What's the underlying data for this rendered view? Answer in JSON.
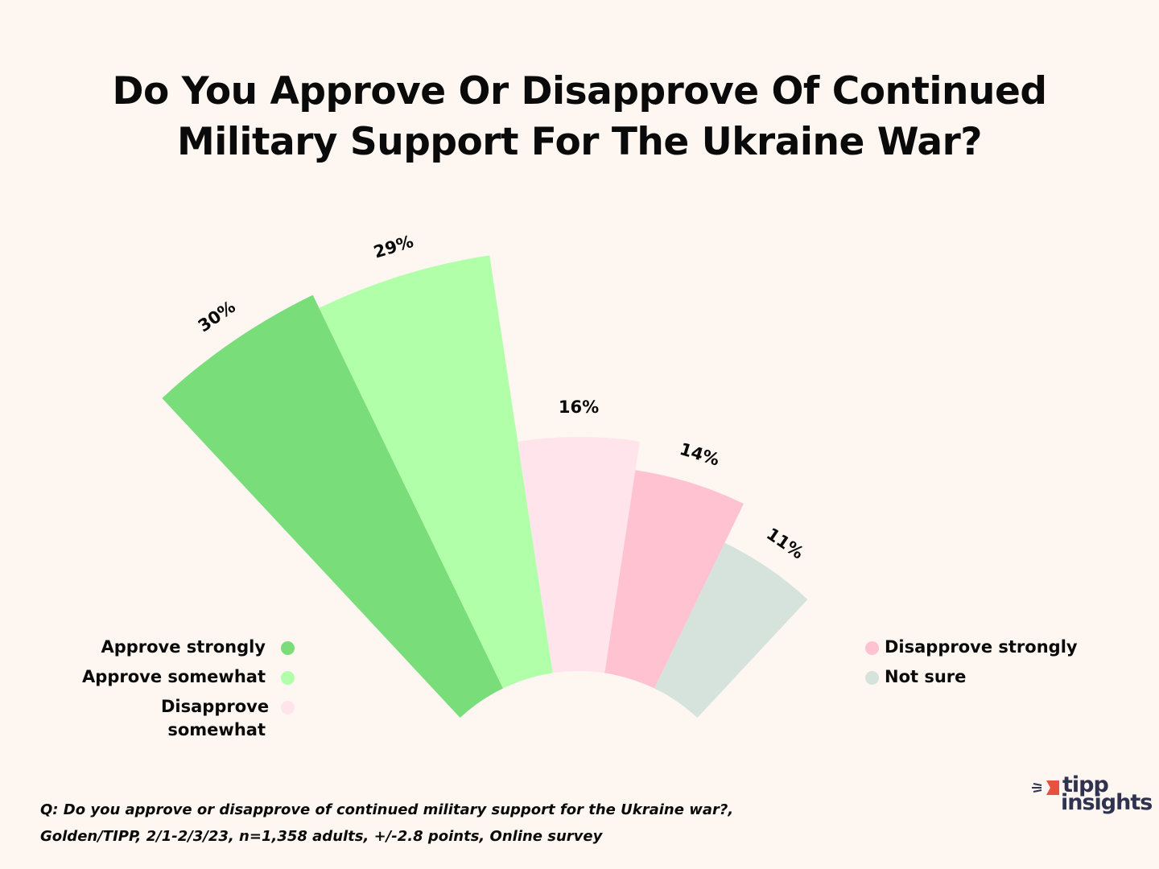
{
  "chart_data": {
    "type": "radial-bar",
    "title": "Do You Approve Or Disapprove Of Continued Military Support For The Ukraine War?",
    "title_lines": [
      "Do You Approve Or Disapprove Of Continued",
      "Military Support For The Ukraine War?"
    ],
    "unit": "%",
    "categories": [
      "Approve strongly",
      "Approve somewhat",
      "Disapprove somewhat",
      "Disapprove strongly",
      "Not sure"
    ],
    "values": [
      30,
      29,
      16,
      14,
      11
    ],
    "labels": [
      "30%",
      "29%",
      "16%",
      "14%",
      "11%"
    ],
    "colors": [
      "#79dd79",
      "#b1ffa8",
      "#ffe4ec",
      "#ffc2d1",
      "#d6e2dc"
    ],
    "legend_left": [
      {
        "label": "Approve strongly",
        "color": "#79dd79"
      },
      {
        "label": "Approve somewhat",
        "color": "#b1ffa8"
      },
      {
        "label": "Disapprove somewhat",
        "color": "#ffe4ec"
      }
    ],
    "legend_right": [
      {
        "label": "Disapprove strongly",
        "color": "#ffc2d1"
      },
      {
        "label": "Not sure",
        "color": "#d6e2dc"
      }
    ]
  },
  "footer": {
    "line1": "Q: Do you approve or disapprove of continued military support for the Ukraine war?,",
    "line2": "Golden/TIPP, 2/1-2/3/23, n=1,358 adults, +/-2.8 points, Online survey"
  },
  "logo": {
    "line1": "tipp",
    "line2": "insights",
    "accent": "#e8503f"
  }
}
